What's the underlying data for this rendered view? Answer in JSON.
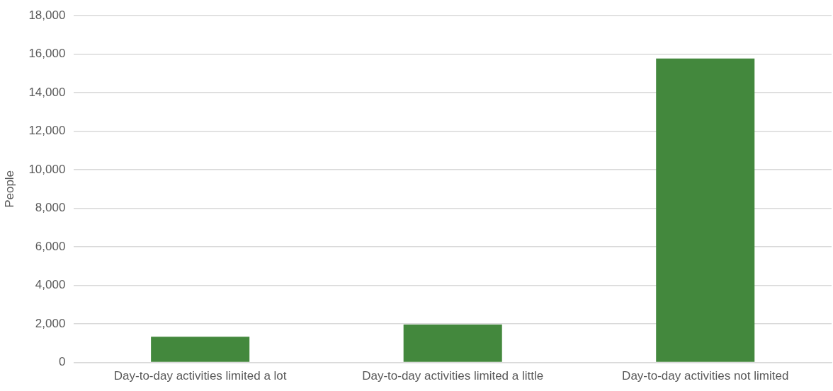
{
  "chart_data": {
    "type": "bar",
    "ylabel": "People",
    "categories": [
      "Day-to-day activities limited a lot",
      "Day-to-day activities limited a little",
      "Day-to-day activities not limited"
    ],
    "values": [
      1330,
      1970,
      15780
    ],
    "color": "#43883d",
    "ylim": [
      0,
      18000
    ],
    "yticks": [
      0,
      {
        "value": 2000,
        "label": "2,000"
      },
      {
        "value": 4000,
        "label": "4,000"
      },
      {
        "value": 6000,
        "label": "6,000"
      },
      {
        "value": 8000,
        "label": "8,000"
      },
      {
        "value": 10000,
        "label": "10,000"
      },
      {
        "value": 12000,
        "label": "12,000"
      },
      {
        "value": 14000,
        "label": "14,000"
      },
      {
        "value": 16000,
        "label": "16,000"
      },
      {
        "value": 18000,
        "label": "18,000"
      }
    ],
    "grid": "y"
  }
}
